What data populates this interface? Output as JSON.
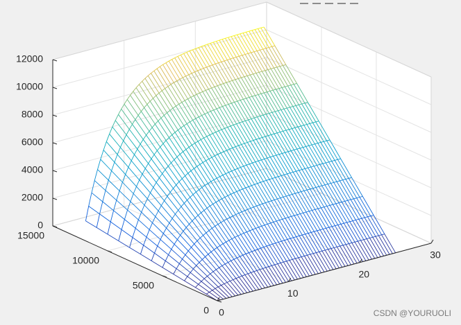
{
  "chart_data": {
    "type": "surface",
    "x_ticks": [
      "0",
      "10",
      "20",
      "30"
    ],
    "y_ticks": [
      "0",
      "5000",
      "10000",
      "15000"
    ],
    "z_ticks": [
      "0",
      "2000",
      "4000",
      "6000",
      "8000",
      "10000",
      "12000"
    ],
    "xlim": [
      0,
      30
    ],
    "ylim": [
      0,
      15000
    ],
    "zlim": [
      0,
      12000
    ],
    "grid": true,
    "colormap": "parula",
    "x_range": [
      0,
      25
    ],
    "y_range": [
      0,
      12000
    ],
    "z_at_max_y_plateau": 12000,
    "z_at_min_y": 0
  },
  "watermark": "CSDN @YOURUOLI",
  "colors": {
    "background": "#f0f0f0",
    "axes_face": "#ffffff",
    "grid": "#e3e3e3",
    "axis_line": "#262626"
  }
}
